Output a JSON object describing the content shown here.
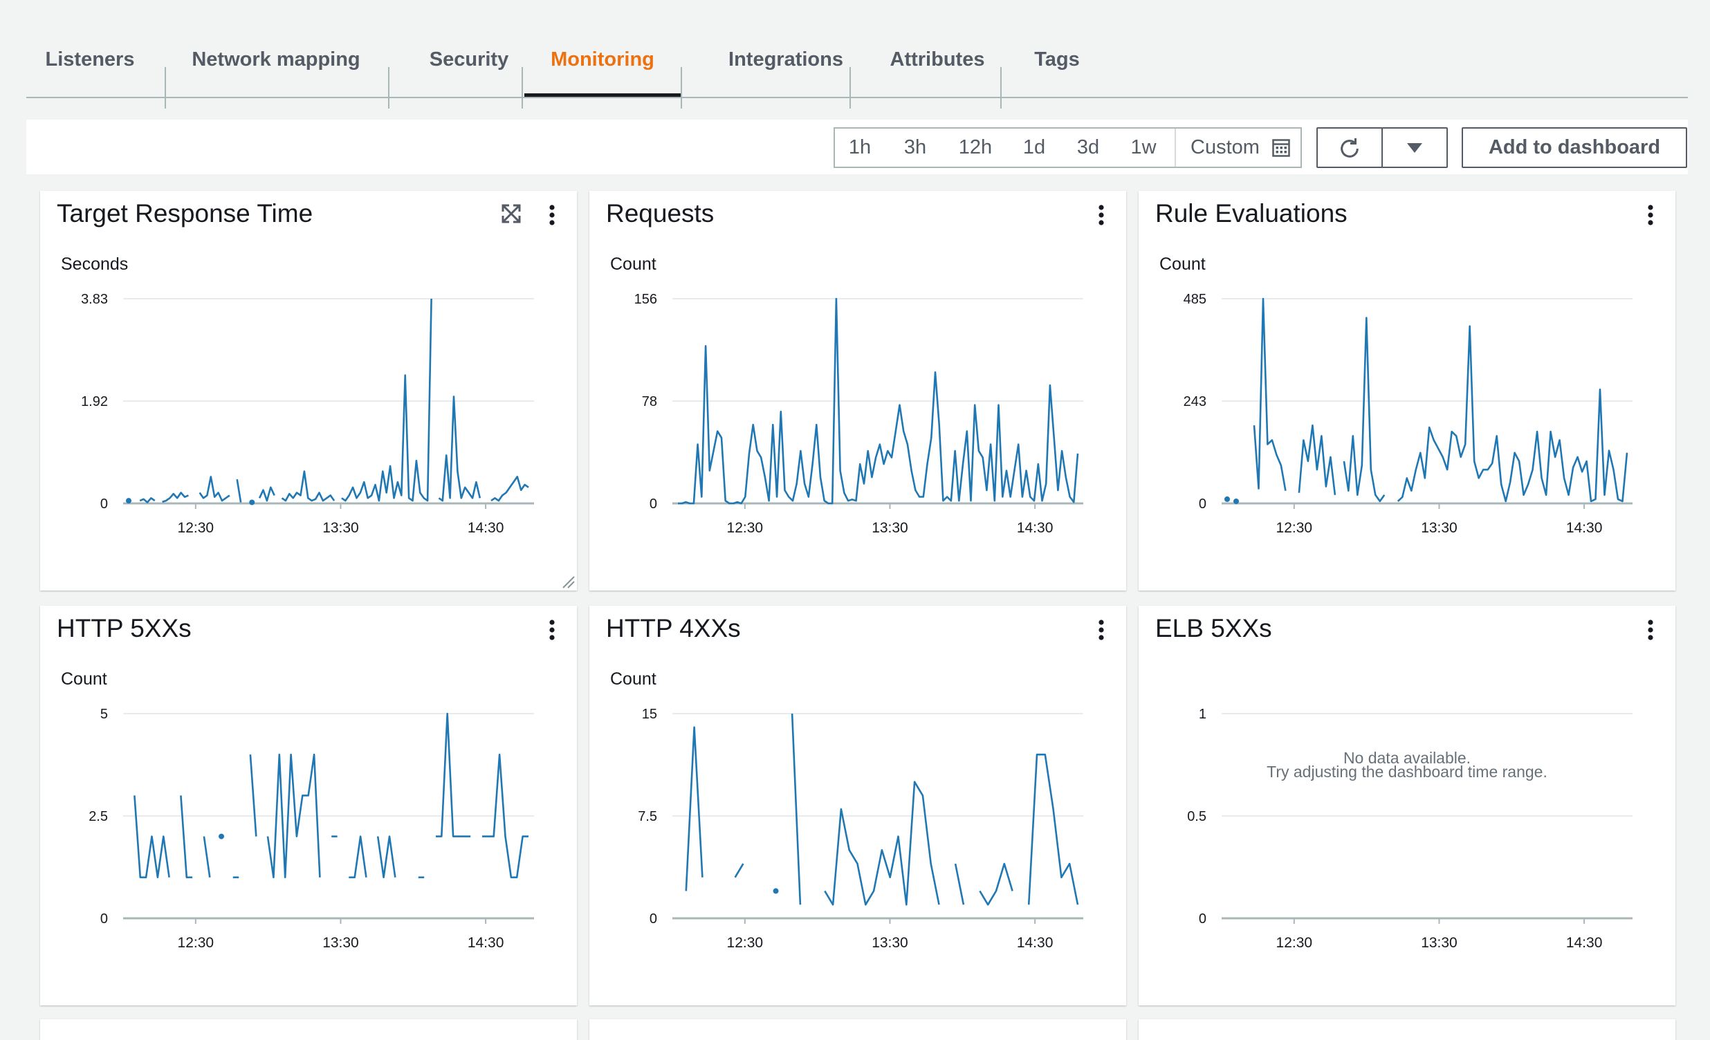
{
  "tabs": [
    {
      "label": "Listeners"
    },
    {
      "label": "Network mapping"
    },
    {
      "label": "Security"
    },
    {
      "label": "Monitoring"
    },
    {
      "label": "Integrations"
    },
    {
      "label": "Attributes"
    },
    {
      "label": "Tags"
    }
  ],
  "active_tab": "Monitoring",
  "toolbar": {
    "ranges": [
      "1h",
      "3h",
      "12h",
      "1d",
      "3d",
      "1w"
    ],
    "custom_label": "Custom",
    "add_to_dashboard_label": "Add to dashboard"
  },
  "icons": {
    "calendar": "calendar-icon",
    "refresh": "refresh-icon",
    "dropdown": "caret-down-icon",
    "menu": "vertical-ellipsis-icon",
    "expand": "expand-icon",
    "resize": "resize-grip-icon"
  },
  "colors": {
    "accent": "#ec7211",
    "series": "#1f77b4",
    "text": "#16191f",
    "muted": "#545b64",
    "grid": "#e9ebed",
    "axis": "#aab7b8",
    "background": "#f2f3f3"
  },
  "widgets": [
    {
      "title": "Target Response Time",
      "unit": "Seconds"
    },
    {
      "title": "Requests",
      "unit": "Count"
    },
    {
      "title": "Rule Evaluations",
      "unit": "Count"
    },
    {
      "title": "HTTP 5XXs",
      "unit": "Count"
    },
    {
      "title": "HTTP 4XXs",
      "unit": "Count"
    },
    {
      "title": "ELB 5XXs",
      "unit": "",
      "no_data_line1": "No data available.",
      "no_data_line2": "Try adjusting the dashboard time range."
    }
  ],
  "chart_data": [
    {
      "type": "line",
      "title": "Target Response Time",
      "ylabel": "Seconds",
      "ylim": [
        0,
        3.83
      ],
      "yticks": [
        "0",
        "1.92",
        "3.83"
      ],
      "xticks": [
        "12:30",
        "13:30",
        "14:30"
      ],
      "x_start": "12:00",
      "x_end": "14:50",
      "grid": true,
      "series": [
        {
          "values": [
            0.05,
            null,
            null,
            0.05,
            0.08,
            0.02,
            0.1,
            0.05,
            null,
            0.03,
            0.05,
            0.1,
            0.18,
            0.1,
            0.2,
            0.12,
            0.15,
            null,
            null,
            0.2,
            0.1,
            0.15,
            0.5,
            0.12,
            0.2,
            0.05,
            0.1,
            0.15,
            null,
            0.45,
            0.02,
            null,
            null,
            0.02,
            null,
            0.1,
            0.25,
            0.05,
            0.3,
            0.15,
            null,
            0.1,
            0.05,
            0.18,
            0.1,
            0.2,
            0.15,
            0.6,
            0.1,
            0.05,
            0.08,
            0.2,
            0.05,
            0.1,
            0.15,
            0.05,
            null,
            0.1,
            0.05,
            0.15,
            0.3,
            0.1,
            0.2,
            0.4,
            0.1,
            0.15,
            0.35,
            0.05,
            0.6,
            0.2,
            0.7,
            0.1,
            0.4,
            0.15,
            2.4,
            0.1,
            0.05,
            0.8,
            0.2,
            0.1,
            0.05,
            3.83,
            null,
            0.1,
            0.05,
            0.9,
            0.1,
            2.0,
            0.6,
            0.1,
            0.3,
            0.2,
            0.1,
            0.4,
            0.1,
            null,
            null,
            0.05,
            0.1,
            0.05,
            0.15,
            0.2,
            0.3,
            0.4,
            0.5,
            0.25,
            0.35,
            0.3
          ]
        }
      ]
    },
    {
      "type": "line",
      "title": "Requests",
      "ylabel": "Count",
      "ylim": [
        0,
        156
      ],
      "yticks": [
        "0",
        "78",
        "156"
      ],
      "xticks": [
        "12:30",
        "13:30",
        "14:30"
      ],
      "x_start": "12:00",
      "x_end": "14:50",
      "grid": true,
      "series": [
        {
          "values": [
            0,
            0,
            1,
            0,
            0,
            45,
            5,
            120,
            25,
            40,
            55,
            50,
            2,
            0,
            0,
            1,
            0,
            5,
            38,
            60,
            40,
            35,
            20,
            2,
            60,
            5,
            70,
            10,
            5,
            2,
            15,
            40,
            15,
            5,
            30,
            60,
            20,
            2,
            0,
            0,
            156,
            25,
            8,
            2,
            3,
            2,
            30,
            15,
            40,
            20,
            35,
            45,
            30,
            40,
            35,
            55,
            75,
            55,
            45,
            25,
            10,
            5,
            5,
            30,
            50,
            100,
            60,
            2,
            5,
            2,
            40,
            2,
            30,
            55,
            2,
            75,
            40,
            35,
            10,
            45,
            2,
            75,
            5,
            25,
            5,
            25,
            45,
            5,
            25,
            5,
            2,
            30,
            2,
            15,
            90,
            50,
            10,
            40,
            20,
            5,
            1,
            38
          ]
        }
      ]
    },
    {
      "type": "line",
      "title": "Rule Evaluations",
      "ylabel": "Count",
      "ylim": [
        0,
        485
      ],
      "yticks": [
        "0",
        "243",
        "485"
      ],
      "xticks": [
        "12:30",
        "13:30",
        "14:30"
      ],
      "x_start": "12:00",
      "x_end": "14:50",
      "grid": true,
      "series": [
        {
          "values": [
            10,
            null,
            5,
            null,
            null,
            null,
            185,
            35,
            485,
            140,
            150,
            115,
            90,
            30,
            null,
            null,
            25,
            150,
            100,
            185,
            80,
            160,
            40,
            110,
            20,
            null,
            100,
            30,
            160,
            20,
            90,
            440,
            80,
            20,
            5,
            20,
            null,
            null,
            5,
            15,
            60,
            30,
            80,
            120,
            60,
            180,
            150,
            130,
            110,
            80,
            170,
            160,
            110,
            140,
            420,
            100,
            60,
            80,
            80,
            95,
            160,
            45,
            5,
            50,
            120,
            100,
            20,
            45,
            80,
            170,
            60,
            20,
            170,
            110,
            150,
            60,
            20,
            85,
            110,
            75,
            100,
            5,
            10,
            270,
            20,
            125,
            80,
            10,
            5,
            120
          ]
        }
      ]
    },
    {
      "type": "line",
      "title": "HTTP 5XXs",
      "ylabel": "Count",
      "ylim": [
        0,
        5
      ],
      "yticks": [
        "0",
        "2.5",
        "5"
      ],
      "xticks": [
        "12:30",
        "13:30",
        "14:30"
      ],
      "x_start": "12:00",
      "x_end": "14:50",
      "grid": true,
      "series": [
        {
          "values": [
            null,
            3,
            1,
            1,
            2,
            1,
            2,
            1,
            null,
            3,
            1,
            1,
            null,
            2,
            1,
            null,
            2,
            null,
            1,
            1,
            null,
            4,
            2,
            null,
            2,
            1,
            4,
            1,
            4,
            2,
            3,
            3,
            4,
            1,
            null,
            2,
            2,
            null,
            1,
            1,
            2,
            1,
            null,
            2,
            1,
            2,
            1,
            null,
            null,
            null,
            1,
            1,
            null,
            2,
            2,
            5,
            2,
            2,
            2,
            2,
            null,
            2,
            2,
            2,
            4,
            2,
            1,
            1,
            2,
            2
          ]
        }
      ]
    },
    {
      "type": "line",
      "title": "HTTP 4XXs",
      "ylabel": "Count",
      "ylim": [
        0,
        15
      ],
      "yticks": [
        "0",
        "7.5",
        "15"
      ],
      "xticks": [
        "12:30",
        "13:30",
        "14:30"
      ],
      "x_start": "12:00",
      "x_end": "14:50",
      "grid": true,
      "series": [
        {
          "values": [
            null,
            2,
            14,
            3,
            null,
            null,
            null,
            3,
            4,
            null,
            null,
            null,
            2,
            null,
            15,
            1,
            null,
            null,
            2,
            1,
            8,
            5,
            4,
            1,
            2,
            5,
            3,
            6,
            1,
            10,
            9,
            4,
            1,
            null,
            4,
            1,
            null,
            2,
            1,
            2,
            4,
            2,
            null,
            1,
            12,
            12,
            8,
            3,
            4,
            1
          ]
        }
      ]
    },
    {
      "type": "line",
      "title": "ELB 5XXs",
      "ylabel": "",
      "ylim": [
        0,
        1
      ],
      "yticks": [
        "0",
        "0.5",
        "1"
      ],
      "xticks": [
        "12:30",
        "13:30",
        "14:30"
      ],
      "x_start": "12:00",
      "x_end": "14:50",
      "grid": true,
      "series": []
    }
  ]
}
